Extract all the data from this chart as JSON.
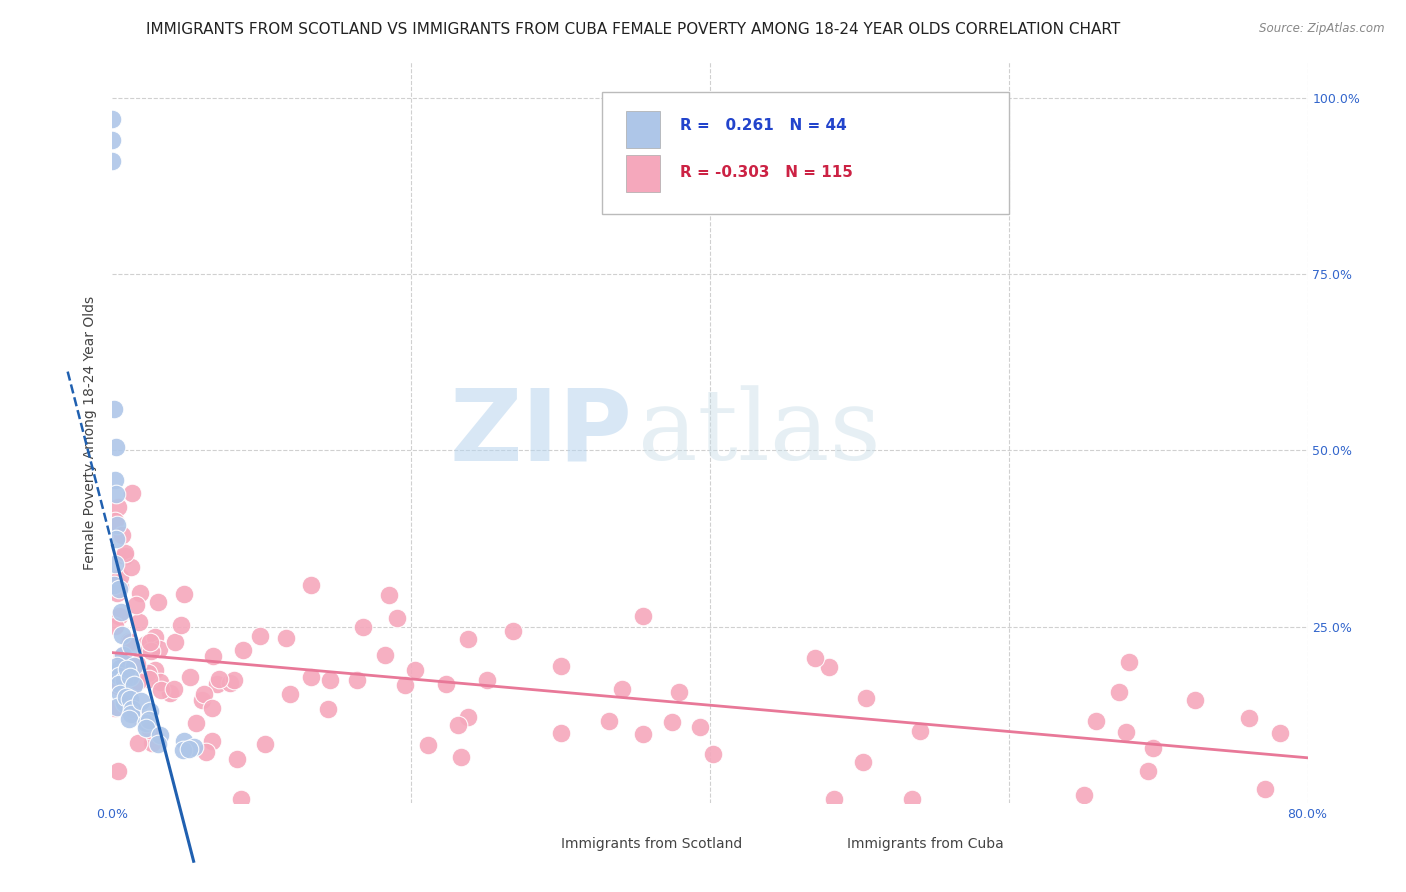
{
  "title": "IMMIGRANTS FROM SCOTLAND VS IMMIGRANTS FROM CUBA FEMALE POVERTY AMONG 18-24 YEAR OLDS CORRELATION CHART",
  "source": "Source: ZipAtlas.com",
  "ylabel": "Female Poverty Among 18-24 Year Olds",
  "xlim": [
    0.0,
    0.8
  ],
  "ylim": [
    0.0,
    1.05
  ],
  "xticks": [
    0.0,
    0.2,
    0.4,
    0.6,
    0.8
  ],
  "xticklabels": [
    "0.0%",
    "",
    "",
    "",
    "80.0%"
  ],
  "yticks": [
    0.0,
    0.25,
    0.5,
    0.75,
    1.0
  ],
  "yticklabels_right": [
    "",
    "25.0%",
    "50.0%",
    "75.0%",
    "100.0%"
  ],
  "scotland_R": 0.261,
  "scotland_N": 44,
  "cuba_R": -0.303,
  "cuba_N": 115,
  "scotland_color": "#aec6e8",
  "cuba_color": "#f5a8bc",
  "scotland_line_color": "#2060b0",
  "cuba_line_color": "#e87898",
  "watermark_zip": "ZIP",
  "watermark_atlas": "atlas",
  "title_fontsize": 11,
  "axis_label_fontsize": 10,
  "tick_fontsize": 9,
  "background_color": "#ffffff",
  "grid_color": "#d0d0d0"
}
